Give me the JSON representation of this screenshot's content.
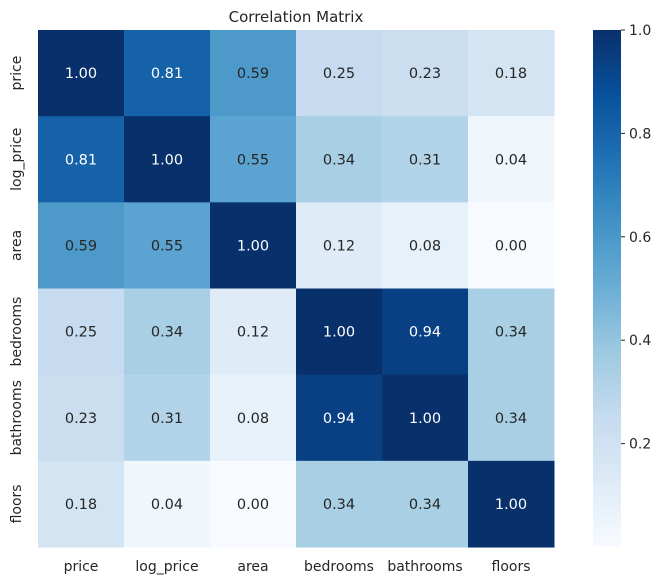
{
  "chart_data": {
    "type": "heatmap",
    "title": "Correlation Matrix",
    "x_labels": [
      "price",
      "log_price",
      "area",
      "bedrooms",
      "bathrooms",
      "floors"
    ],
    "y_labels": [
      "price",
      "log_price",
      "area",
      "bedrooms",
      "bathrooms",
      "floors"
    ],
    "values": [
      [
        1.0,
        0.81,
        0.59,
        0.25,
        0.23,
        0.18
      ],
      [
        0.81,
        1.0,
        0.55,
        0.34,
        0.31,
        0.04
      ],
      [
        0.59,
        0.55,
        1.0,
        0.12,
        0.08,
        0.0
      ],
      [
        0.25,
        0.34,
        0.12,
        1.0,
        0.94,
        0.34
      ],
      [
        0.23,
        0.31,
        0.08,
        0.94,
        1.0,
        0.34
      ],
      [
        0.18,
        0.04,
        0.0,
        0.34,
        0.34,
        1.0
      ]
    ],
    "annotation_format": "0.00",
    "colormap": "Blues",
    "vmin": 0.0,
    "vmax": 1.0,
    "colorbar": {
      "ticks": [
        0.2,
        0.4,
        0.6,
        0.8,
        1.0
      ],
      "tick_labels": [
        "0.2",
        "0.4",
        "0.6",
        "0.8",
        "1.0"
      ],
      "placement": "right"
    },
    "grid": false
  },
  "colors": {
    "text_dark": "#262626",
    "text_light": "#ffffff",
    "background": "#ffffff"
  }
}
